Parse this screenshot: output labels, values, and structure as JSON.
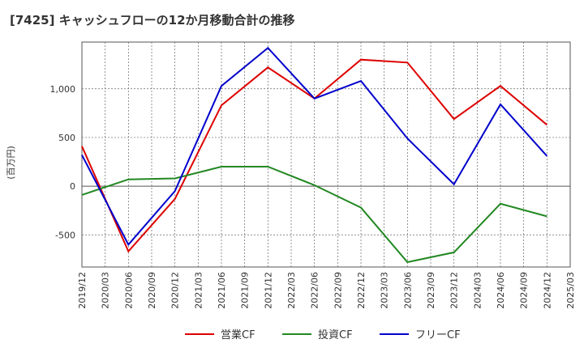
{
  "chart_data": {
    "type": "line",
    "title": "[7425]  キャッシュフローの12か月移動合計の推移",
    "ylabel": "(百万円)",
    "xlabel": "",
    "ylim": [
      -830,
      1480
    ],
    "yticks": [
      -500,
      0,
      500,
      1000
    ],
    "ytick_labels": [
      "-500",
      "0",
      "500",
      "1,000"
    ],
    "x_ticks": [
      "2019/12",
      "2020/03",
      "2020/06",
      "2020/09",
      "2020/12",
      "2021/03",
      "2021/06",
      "2021/09",
      "2021/12",
      "2022/03",
      "2022/06",
      "2022/09",
      "2022/12",
      "2023/03",
      "2023/06",
      "2023/09",
      "2023/12",
      "2024/03",
      "2024/06",
      "2024/09",
      "2024/12",
      "2025/03"
    ],
    "grid": true,
    "legend_position": "bottom",
    "series": [
      {
        "name": "営業CF",
        "color": "#dd0000",
        "points": [
          [
            "2019/12",
            410
          ],
          [
            "2020/06",
            -670
          ],
          [
            "2020/12",
            -130
          ],
          [
            "2021/06",
            830
          ],
          [
            "2021/12",
            1220
          ],
          [
            "2022/06",
            900
          ],
          [
            "2022/12",
            1300
          ],
          [
            "2023/06",
            1270
          ],
          [
            "2023/12",
            690
          ],
          [
            "2024/06",
            1030
          ],
          [
            "2024/12",
            630
          ]
        ]
      },
      {
        "name": "投資CF",
        "color": "#228822",
        "points": [
          [
            "2019/12",
            -90
          ],
          [
            "2020/06",
            70
          ],
          [
            "2020/12",
            80
          ],
          [
            "2021/06",
            200
          ],
          [
            "2021/12",
            200
          ],
          [
            "2022/06",
            10
          ],
          [
            "2022/12",
            -220
          ],
          [
            "2023/06",
            -780
          ],
          [
            "2023/12",
            -680
          ],
          [
            "2024/06",
            -180
          ],
          [
            "2024/12",
            -310
          ]
        ]
      },
      {
        "name": "フリーCF",
        "color": "#0000cc",
        "points": [
          [
            "2019/12",
            320
          ],
          [
            "2020/06",
            -600
          ],
          [
            "2020/12",
            -50
          ],
          [
            "2021/06",
            1030
          ],
          [
            "2021/12",
            1420
          ],
          [
            "2022/06",
            900
          ],
          [
            "2022/12",
            1080
          ],
          [
            "2023/06",
            490
          ],
          [
            "2023/12",
            20
          ],
          [
            "2024/06",
            840
          ],
          [
            "2024/12",
            310
          ]
        ]
      }
    ]
  }
}
